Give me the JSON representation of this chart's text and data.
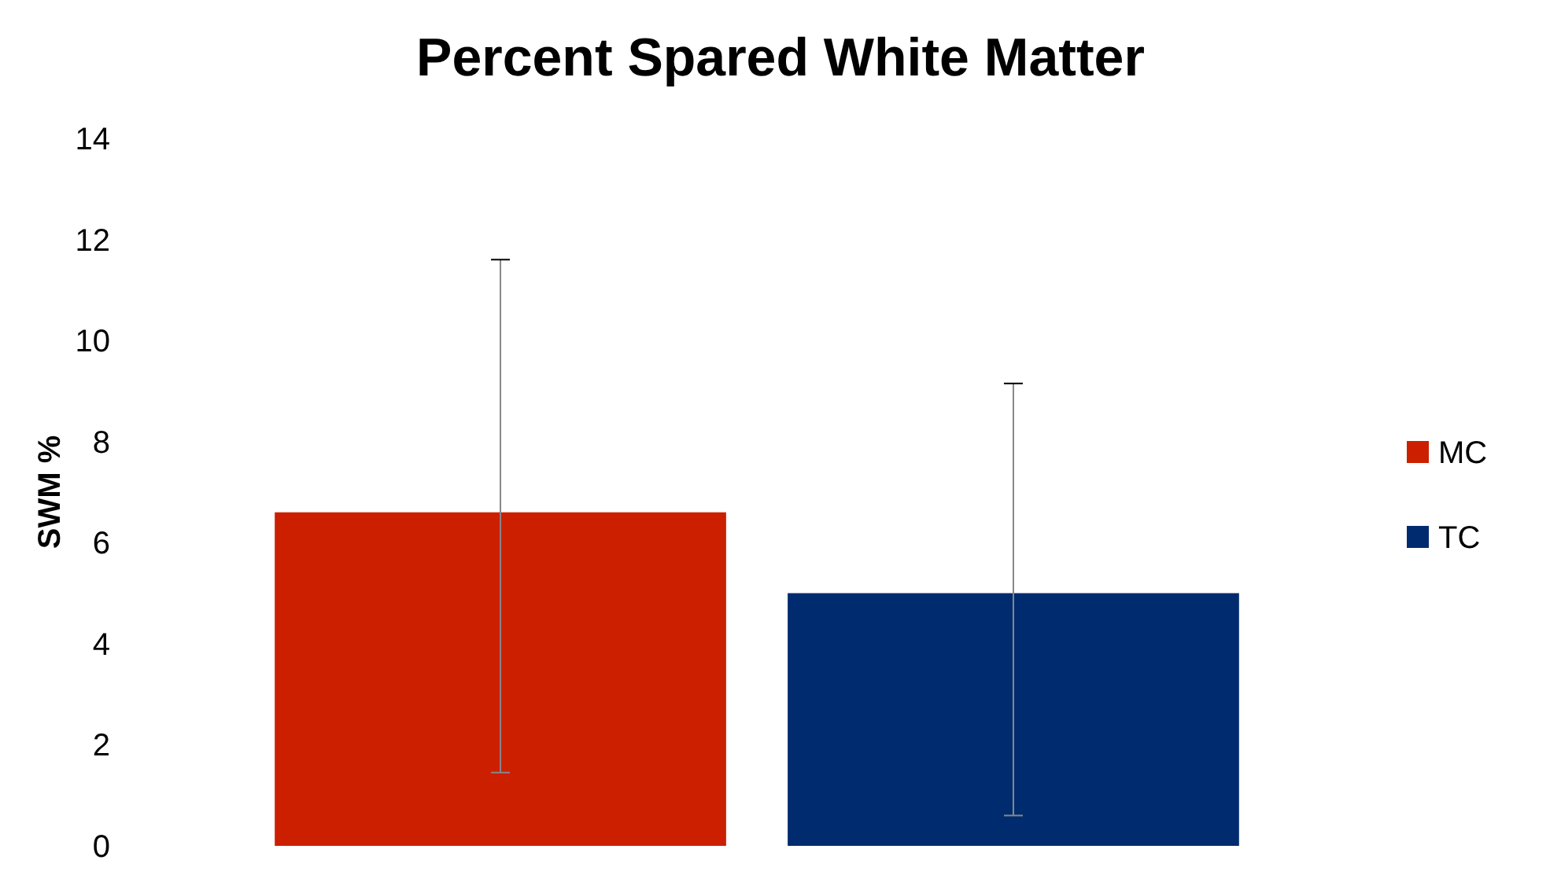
{
  "chart_data": {
    "type": "bar",
    "title": "Percent Spared White Matter",
    "ylabel": "SWM %",
    "categories": [
      null
    ],
    "series": [
      {
        "name": "MC",
        "color": "#cc1f00",
        "values": [
          6.6
        ],
        "errors": [
          [
            1.45,
            11.6
          ]
        ]
      },
      {
        "name": "TC",
        "color": "#002b6e",
        "values": [
          5.0
        ],
        "errors": [
          [
            0.6,
            9.15
          ]
        ]
      }
    ],
    "ylim": [
      0,
      14
    ],
    "yticks": [
      0,
      2,
      4,
      6,
      8,
      10,
      12,
      14
    ],
    "legend": "right",
    "grid": false
  }
}
